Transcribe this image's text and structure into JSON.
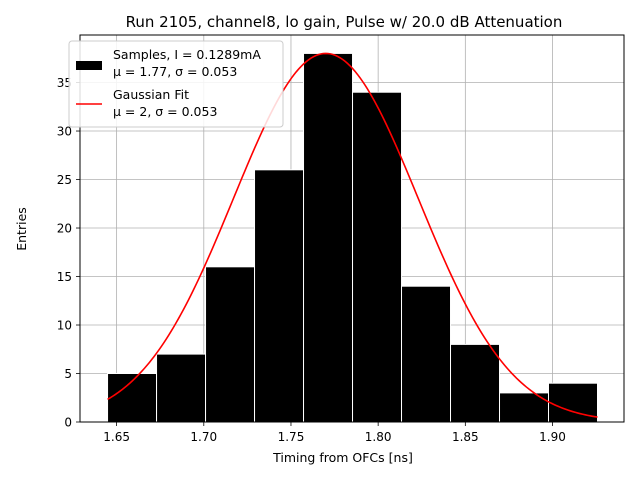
{
  "chart_data": {
    "type": "bar",
    "title": "Run 2105, channel8, lo gain, Pulse w/ 20.0 dB Attenuation",
    "xlabel": "Timing from OFCs [ns]",
    "ylabel": "Entries",
    "xlim": [
      1.629,
      1.941
    ],
    "ylim": [
      0,
      39.9
    ],
    "grid": true,
    "legend_position": "top-left",
    "bin_edges": [
      1.6448,
      1.6729,
      1.701,
      1.7291,
      1.7572,
      1.7853,
      1.8134,
      1.8415,
      1.8696,
      1.8977,
      1.9258
    ],
    "counts": [
      5,
      7,
      16,
      26,
      38,
      34,
      14,
      8,
      3,
      4
    ],
    "xticks": [
      "1.65",
      "1.70",
      "1.75",
      "1.80",
      "1.85",
      "1.90"
    ],
    "xtick_values": [
      1.65,
      1.7,
      1.75,
      1.8,
      1.85,
      1.9
    ],
    "yticks": [
      "0",
      "5",
      "10",
      "15",
      "20",
      "25",
      "30",
      "35"
    ],
    "ytick_values": [
      0,
      5,
      10,
      15,
      20,
      25,
      30,
      35
    ],
    "series": [
      {
        "name": "Samples, I = 0.1289mA",
        "name_line2": "μ = 1.77, σ = 0.053",
        "kind": "histogram",
        "color": "#000000",
        "edgecolor": "#ffffff"
      },
      {
        "name": "Gaussian Fit",
        "name_line2": "μ = 2, σ = 0.053",
        "kind": "line",
        "color": "#ff0000",
        "amplitude": 38.0,
        "mean": 1.77,
        "sigma": 0.053,
        "x_range": [
          1.6448,
          1.9258
        ]
      }
    ]
  }
}
